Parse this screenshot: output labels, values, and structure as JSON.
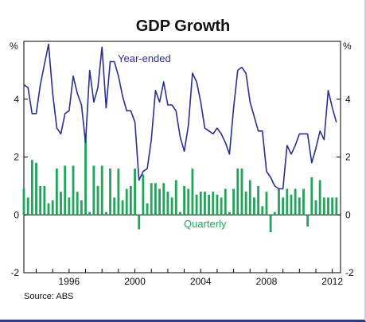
{
  "title": "GDP Growth",
  "source": "Source: ABS",
  "colors": {
    "year_ended": "#2b2f8f",
    "quarterly": "#22a45a",
    "axis": "#000000",
    "grid": "#777777"
  },
  "chart_data": {
    "type": "bar",
    "title": "GDP Growth",
    "xlabel": "",
    "ylabel": "%",
    "y_unit_label_left": "%",
    "y_unit_label_right": "%",
    "ylim": [
      -2,
      6
    ],
    "xlim": [
      1993.25,
      2012.5
    ],
    "yticks": [
      -2,
      0,
      2,
      4
    ],
    "xticks": [
      1996,
      2000,
      2004,
      2008,
      2012
    ],
    "grid": false,
    "series": [
      {
        "name": "Year-ended",
        "type": "line",
        "color": "#2b2f8f",
        "x": [
          1993.25,
          1993.5,
          1993.75,
          1994.0,
          1994.25,
          1994.5,
          1994.75,
          1995.0,
          1995.25,
          1995.5,
          1995.75,
          1996.0,
          1996.25,
          1996.5,
          1996.75,
          1997.0,
          1997.25,
          1997.5,
          1997.75,
          1998.0,
          1998.25,
          1998.5,
          1998.75,
          1999.0,
          1999.25,
          1999.5,
          1999.75,
          2000.0,
          2000.25,
          2000.5,
          2000.75,
          2001.0,
          2001.25,
          2001.5,
          2001.75,
          2002.0,
          2002.25,
          2002.5,
          2002.75,
          2003.0,
          2003.25,
          2003.5,
          2003.75,
          2004.0,
          2004.25,
          2004.5,
          2004.75,
          2005.0,
          2005.25,
          2005.5,
          2005.75,
          2006.0,
          2006.25,
          2006.5,
          2006.75,
          2007.0,
          2007.25,
          2007.5,
          2007.75,
          2008.0,
          2008.25,
          2008.5,
          2008.75,
          2009.0,
          2009.25,
          2009.5,
          2009.75,
          2010.0,
          2010.25,
          2010.5,
          2010.75,
          2011.0,
          2011.25,
          2011.5,
          2011.75,
          2012.0,
          2012.25
        ],
        "values": [
          4.5,
          4.4,
          3.5,
          3.5,
          4.5,
          5.2,
          5.9,
          4.2,
          3.0,
          2.8,
          3.5,
          3.6,
          4.8,
          4.2,
          3.8,
          2.5,
          5.0,
          3.9,
          4.4,
          5.8,
          3.7,
          5.3,
          5.3,
          4.8,
          4.1,
          3.6,
          3.6,
          3.2,
          1.2,
          1.5,
          1.6,
          2.6,
          4.3,
          3.9,
          4.6,
          3.8,
          3.8,
          3.6,
          2.7,
          2.2,
          3.1,
          4.9,
          4.6,
          3.9,
          3.0,
          2.9,
          2.8,
          3.0,
          2.8,
          2.5,
          2.1,
          3.7,
          5.0,
          5.1,
          4.9,
          3.9,
          3.4,
          2.9,
          2.9,
          1.5,
          1.3,
          1.0,
          0.9,
          0.9,
          2.4,
          2.1,
          2.4,
          2.8,
          2.8,
          2.8,
          1.8,
          2.3,
          2.9,
          2.6,
          4.3,
          3.7,
          3.2
        ]
      },
      {
        "name": "Quarterly",
        "type": "bar",
        "color": "#22a45a",
        "x": [
          1993.25,
          1993.5,
          1993.75,
          1994.0,
          1994.25,
          1994.5,
          1994.75,
          1995.0,
          1995.25,
          1995.5,
          1995.75,
          1996.0,
          1996.25,
          1996.5,
          1996.75,
          1997.0,
          1997.25,
          1997.5,
          1997.75,
          1998.0,
          1998.25,
          1998.5,
          1998.75,
          1999.0,
          1999.25,
          1999.5,
          1999.75,
          2000.0,
          2000.25,
          2000.5,
          2000.75,
          2001.0,
          2001.25,
          2001.5,
          2001.75,
          2002.0,
          2002.25,
          2002.5,
          2002.75,
          2003.0,
          2003.25,
          2003.5,
          2003.75,
          2004.0,
          2004.25,
          2004.5,
          2004.75,
          2005.0,
          2005.25,
          2005.5,
          2005.75,
          2006.0,
          2006.25,
          2006.5,
          2006.75,
          2007.0,
          2007.25,
          2007.5,
          2007.75,
          2008.0,
          2008.25,
          2008.5,
          2008.75,
          2009.0,
          2009.25,
          2009.5,
          2009.75,
          2010.0,
          2010.25,
          2010.5,
          2010.75,
          2011.0,
          2011.25,
          2011.5,
          2011.75,
          2012.0,
          2012.25
        ],
        "values": [
          0.9,
          0.6,
          1.9,
          1.8,
          1.0,
          1.0,
          0.4,
          0.5,
          1.6,
          0.8,
          1.7,
          0.6,
          1.7,
          0.8,
          0.5,
          2.8,
          0.1,
          1.7,
          1.0,
          1.7,
          0.1,
          1.6,
          0.6,
          1.6,
          0.5,
          0.9,
          1.0,
          1.6,
          -0.5,
          1.4,
          0.4,
          1.1,
          1.1,
          0.9,
          1.1,
          0.8,
          0.6,
          1.2,
          0.1,
          1.0,
          0.9,
          1.6,
          0.7,
          0.8,
          0.8,
          0.7,
          0.8,
          0.7,
          0.6,
          0.9,
          0.1,
          0.9,
          1.6,
          1.6,
          0.8,
          1.2,
          0.6,
          1.0,
          0.3,
          0.8,
          -0.6,
          0.1,
          0.9,
          0.6,
          0.9,
          0.7,
          0.9,
          0.6,
          0.9,
          -0.4,
          1.3,
          0.5,
          1.2,
          0.6,
          0.6,
          0.6,
          0.6
        ]
      }
    ],
    "annotations": [
      "Year-ended",
      "Quarterly"
    ]
  }
}
